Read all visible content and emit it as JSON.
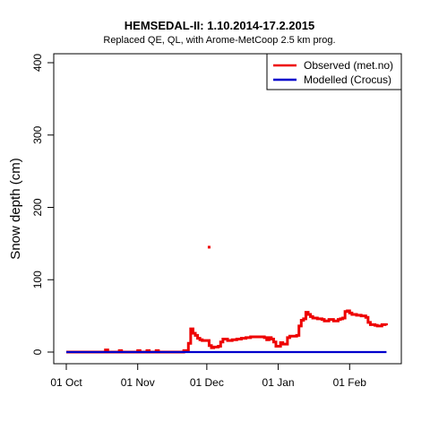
{
  "chart_data": {
    "type": "line",
    "title": "HEMSEDAL-II: 1.10.2014-17.2.2015",
    "subtitle": "Replaced QE, QL,  with Arome-MetCoop 2.5 km prog.",
    "ylabel": "Snow depth (cm)",
    "xlabel": "",
    "ylim": [
      0,
      400
    ],
    "yticks": [
      0,
      100,
      200,
      300,
      400
    ],
    "xlim": [
      0,
      140
    ],
    "xticks": [
      {
        "value": 0,
        "label": "01 Oct"
      },
      {
        "value": 31,
        "label": "01 Nov"
      },
      {
        "value": 61,
        "label": "01 Dec"
      },
      {
        "value": 92,
        "label": "01 Jan"
      },
      {
        "value": 123,
        "label": "01 Feb"
      }
    ],
    "grid": false,
    "legend_position": "top-right",
    "series": [
      {
        "name": "Observed (met.no)",
        "color": "#ee0000",
        "style": "step",
        "points": [
          [
            0,
            0
          ],
          [
            16,
            0
          ],
          [
            17,
            3
          ],
          [
            18,
            0
          ],
          [
            22,
            0
          ],
          [
            23,
            2
          ],
          [
            24,
            0
          ],
          [
            30,
            0
          ],
          [
            31,
            2
          ],
          [
            32,
            0
          ],
          [
            34,
            0
          ],
          [
            35,
            2
          ],
          [
            36,
            0
          ],
          [
            38,
            0
          ],
          [
            39,
            2
          ],
          [
            40,
            0
          ],
          [
            50,
            0
          ],
          [
            51,
            2
          ],
          [
            52,
            2
          ],
          [
            53,
            12
          ],
          [
            54,
            32
          ],
          [
            55,
            26
          ],
          [
            56,
            23
          ],
          [
            57,
            19
          ],
          [
            58,
            17
          ],
          [
            59,
            16
          ],
          [
            61,
            16
          ],
          [
            62,
            9
          ],
          [
            63,
            6
          ],
          [
            64,
            7
          ],
          [
            66,
            8
          ],
          [
            67,
            14
          ],
          [
            68,
            18
          ],
          [
            70,
            16
          ],
          [
            72,
            17
          ],
          [
            74,
            18
          ],
          [
            76,
            19
          ],
          [
            78,
            20
          ],
          [
            80,
            21
          ],
          [
            84,
            21
          ],
          [
            86,
            20
          ],
          [
            87,
            17
          ],
          [
            88,
            20
          ],
          [
            89,
            18
          ],
          [
            90,
            14
          ],
          [
            91,
            8
          ],
          [
            93,
            13
          ],
          [
            94,
            11
          ],
          [
            96,
            20
          ],
          [
            97,
            22
          ],
          [
            100,
            23
          ],
          [
            101,
            36
          ],
          [
            102,
            44
          ],
          [
            103,
            46
          ],
          [
            104,
            55
          ],
          [
            105,
            52
          ],
          [
            106,
            49
          ],
          [
            107,
            47
          ],
          [
            109,
            46
          ],
          [
            111,
            45
          ],
          [
            112,
            43
          ],
          [
            114,
            45
          ],
          [
            116,
            43
          ],
          [
            118,
            45
          ],
          [
            119,
            46
          ],
          [
            120,
            47
          ],
          [
            121,
            56
          ],
          [
            122,
            57
          ],
          [
            123,
            54
          ],
          [
            124,
            52
          ],
          [
            126,
            51
          ],
          [
            128,
            50
          ],
          [
            130,
            48
          ],
          [
            131,
            41
          ],
          [
            132,
            38
          ],
          [
            134,
            37
          ],
          [
            135,
            36
          ],
          [
            137,
            38
          ],
          [
            139,
            37
          ]
        ],
        "outliers": [
          [
            62,
            145
          ]
        ]
      },
      {
        "name": "Modelled (Crocus)",
        "color": "#0000cc",
        "style": "line",
        "points": [
          [
            0,
            0
          ],
          [
            139,
            0
          ]
        ]
      }
    ]
  }
}
